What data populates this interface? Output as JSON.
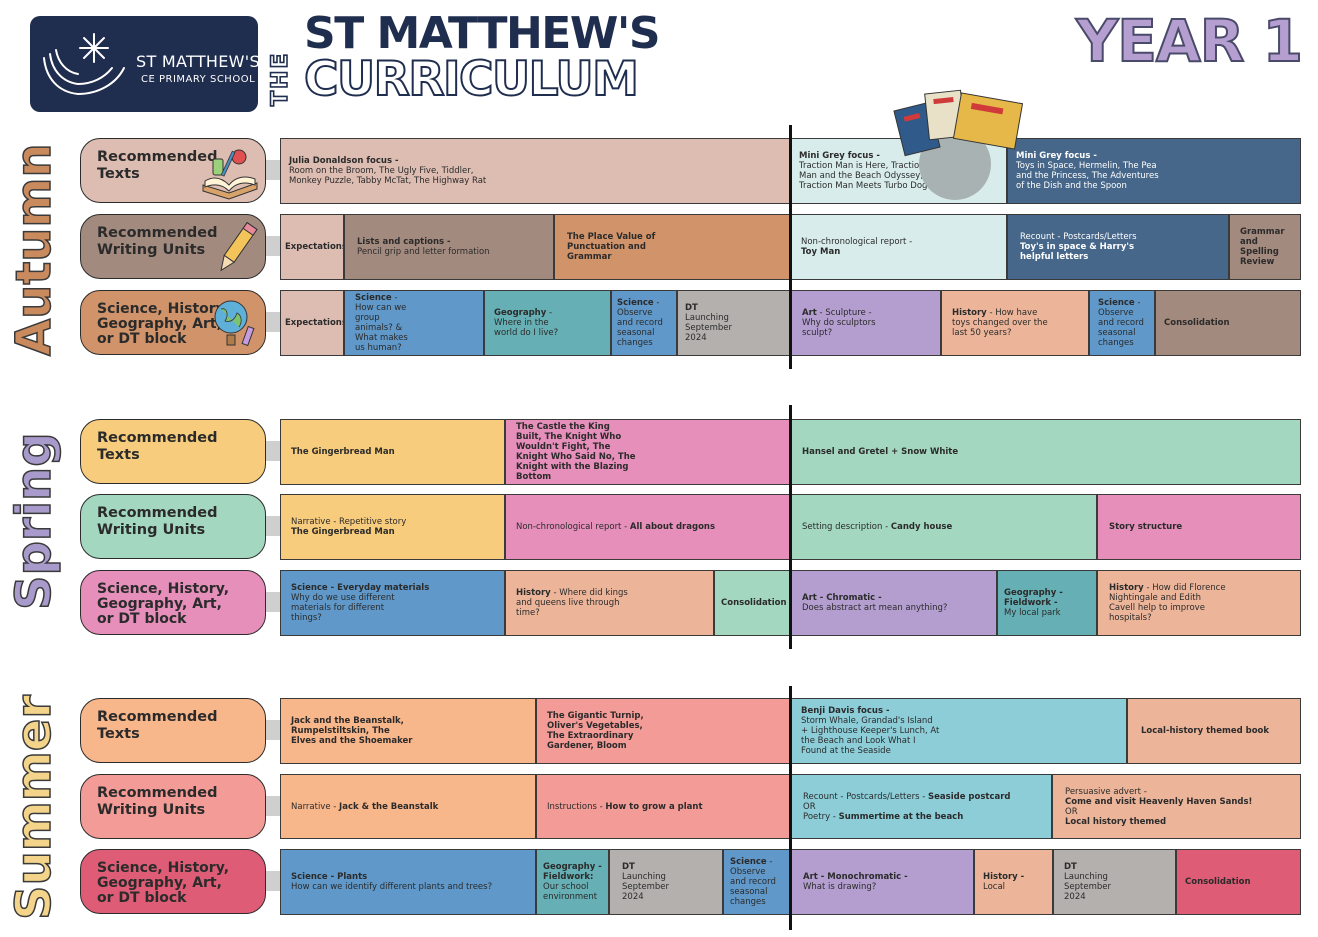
{
  "header": {
    "school_name": "ST MATTHEW'S",
    "school_sub": "CE PRIMARY SCHOOL",
    "the": "THE",
    "title_line1": "ST MATTHEW'S",
    "title_line2": "CURRICULUM",
    "year": "YEAR 1"
  },
  "seasons": {
    "autumn": {
      "label": "Autumn",
      "color": "#c98a5e"
    },
    "spring": {
      "label": "Spring",
      "color": "#a89bcc"
    },
    "summer": {
      "label": "Summer",
      "color": "#f4d48a"
    }
  },
  "row_labels": {
    "texts": [
      "Recommended",
      "Texts"
    ],
    "writing": [
      "Recommended",
      "Writing Units"
    ],
    "foundation": [
      "Science, History,",
      "Geography, Art,",
      "or DT block"
    ]
  },
  "autumn": {
    "texts": [
      {
        "title": "Julia Donaldson focus -",
        "body": [
          "Room on the Broom, The Ugly Five, Tiddler,",
          "Monkey Puzzle, Tabby McTat, The Highway Rat"
        ]
      },
      {
        "title": "Mini Grey focus -",
        "body": [
          "Traction Man is Here, Traction",
          "Man and the Beach Odyssey,",
          "Traction Man Meets Turbo Dog"
        ]
      },
      {
        "title": "Mini Grey focus -",
        "body": [
          "Toys in Space, Hermelin, The Pea",
          "and the Princess, The Adventures",
          "of the Dish and the Spoon"
        ]
      }
    ],
    "writing": [
      {
        "title": "Expectations"
      },
      {
        "title": "Lists and captions -",
        "body": [
          "Pencil grip and letter formation"
        ]
      },
      {
        "title": "The Place Value of Punctuation and Grammar"
      },
      {
        "lead": "Non-chronological report -",
        "title": "Toy Man"
      },
      {
        "lead": "Recount - Postcards/Letters",
        "title": "Toy's in space & Harry's helpful letters"
      },
      {
        "title": "Grammar and Spelling Review"
      }
    ],
    "foundation": [
      {
        "title": "Expectations"
      },
      {
        "title": "Science",
        "body": [
          "- How can we group animals? & What makes us human?"
        ]
      },
      {
        "title": "Geography",
        "body": [
          "- Where in the world do I live?"
        ]
      },
      {
        "title": "Science",
        "body": [
          "- Observe and record seasonal changes"
        ]
      },
      {
        "title": "DT",
        "body": [
          "Launching September 2024"
        ]
      },
      {
        "title": "Art",
        "body": [
          "- Sculpture - Why do sculptors sculpt?"
        ]
      },
      {
        "title": "History",
        "body": [
          "- How have toys changed over the last 50 years?"
        ]
      },
      {
        "title": "Science",
        "body": [
          "- Observe and record seasonal changes"
        ]
      },
      {
        "title": "Consolidation"
      }
    ]
  },
  "spring": {
    "texts": [
      {
        "title": "The Gingerbread Man"
      },
      {
        "title": "The Castle the King Built, The Knight Who Wouldn't Fight, The Knight Who Said No, The Knight with the Blazing Bottom"
      },
      {
        "title": "Hansel and Gretel + Snow White"
      }
    ],
    "writing": [
      {
        "lead": "Narrative - Repetitive story",
        "title": "The Gingerbread Man"
      },
      {
        "lead": "Non-chronological report - ",
        "title": "All about dragons"
      },
      {
        "lead": "Setting description - ",
        "title": "Candy house"
      },
      {
        "title": "Story structure"
      }
    ],
    "foundation": [
      {
        "title": "Science - Everyday materials",
        "body": [
          "Why do we use different materials for different things?"
        ]
      },
      {
        "title": "History",
        "body": [
          "- Where did kings and queens live through time?"
        ]
      },
      {
        "title": "Consolidation"
      },
      {
        "title": "Art - Chromatic -",
        "body": [
          "Does abstract art mean anything?"
        ]
      },
      {
        "title": "Geography - Fieldwork -",
        "body": [
          "My local park"
        ]
      },
      {
        "title": "History",
        "body": [
          "- How did Florence Nightingale and Edith Cavell help to improve hospitals?"
        ]
      }
    ]
  },
  "summer": {
    "texts": [
      {
        "title": "Jack and the Beanstalk, Rumpelstiltskin, The Elves and the Shoemaker"
      },
      {
        "title": "The Gigantic Turnip, Oliver's Vegetables, The Extraordinary Gardener, Bloom"
      },
      {
        "title": "Benji Davis focus -",
        "body": [
          "Storm Whale, Grandad's Island",
          "+ Lighthouse Keeper's Lunch, At",
          "the Beach and Look What I",
          "Found at the Seaside"
        ]
      },
      {
        "title": "Local-history themed book"
      }
    ],
    "writing": [
      {
        "lead": "Narrative - ",
        "title": "Jack & the Beanstalk"
      },
      {
        "lead": "Instructions - ",
        "title": "How to grow a plant"
      },
      {
        "lines": [
          {
            "lead": "Recount - Postcards/Letters - ",
            "title": "Seaside postcard"
          },
          {
            "lead": "OR"
          },
          {
            "lead": "Poetry - ",
            "title": "Summertime at the beach"
          }
        ]
      },
      {
        "lines": [
          {
            "lead": "Persuasive advert -"
          },
          {
            "title": "Come and visit Heavenly Haven Sands!"
          },
          {
            "lead": "OR"
          },
          {
            "title": "Local history themed"
          }
        ]
      }
    ],
    "foundation": [
      {
        "title": "Science - Plants",
        "body": [
          "How can we identify different plants and trees?"
        ]
      },
      {
        "title": "Geography - Fieldwork:",
        "body": [
          "Our school environment"
        ]
      },
      {
        "title": "DT",
        "body": [
          "Launching September 2024"
        ]
      },
      {
        "title": "Science",
        "body": [
          "- Observe and record seasonal changes"
        ]
      },
      {
        "title": "Art - Monochromatic -",
        "body": [
          "What is drawing?"
        ]
      },
      {
        "title": "History -",
        "body": [
          "Local"
        ]
      },
      {
        "title": "DT",
        "body": [
          "Launching September 2024"
        ]
      },
      {
        "title": "Consolidation"
      }
    ]
  },
  "colors": {
    "navy": "#1f2d4e",
    "autumn_text_pill": "#ddbdb2",
    "autumn_writing_pill": "#a38a7e",
    "autumn_foundation_pill": "#d1936a",
    "spring_text_pill": "#f8cc7d",
    "spring_writing_pill": "#a3d7c0",
    "spring_foundation_pill": "#e58fba",
    "summer_text_pill": "#f8b68b",
    "summer_writing_pill": "#f39b96",
    "summer_foundation_pill": "#de5c75"
  }
}
